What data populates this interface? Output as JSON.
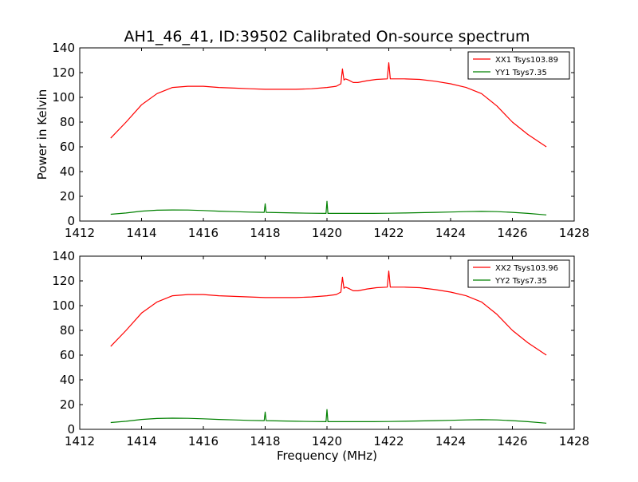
{
  "title": "AH1_46_41, ID:39502 Calibrated On-source spectrum",
  "colors": {
    "xx": "#ff0000",
    "yy": "#008000"
  },
  "chart_data": [
    {
      "type": "line",
      "ylabel": "Power in Kelvin",
      "xlabel": "",
      "xlim": [
        1412,
        1428
      ],
      "ylim": [
        0,
        140
      ],
      "xticks": [
        "1412",
        "1414",
        "1416",
        "1418",
        "1420",
        "1422",
        "1424",
        "1426",
        "1428"
      ],
      "yticks": [
        "0",
        "20",
        "40",
        "60",
        "80",
        "100",
        "120",
        "140"
      ],
      "legend": "top-right",
      "series": [
        {
          "name": "XX1 Tsys103.89",
          "color": "#ff0000",
          "x": [
            1413.0,
            1413.5,
            1414.0,
            1414.5,
            1415.0,
            1415.5,
            1416.0,
            1416.5,
            1417.0,
            1417.5,
            1418.0,
            1418.5,
            1419.0,
            1419.5,
            1420.0,
            1420.3,
            1420.45,
            1420.5,
            1420.55,
            1420.6,
            1420.7,
            1420.85,
            1421.0,
            1421.3,
            1421.6,
            1421.95,
            1422.0,
            1422.05,
            1422.5,
            1423.0,
            1423.5,
            1424.0,
            1424.5,
            1425.0,
            1425.5,
            1426.0,
            1426.5,
            1427.1
          ],
          "y": [
            67,
            80,
            94,
            103,
            108,
            109,
            109,
            108,
            107.5,
            107,
            106.5,
            106.5,
            106.5,
            107,
            108,
            109,
            111,
            123,
            114,
            115,
            114,
            112,
            112,
            113.5,
            114.5,
            115,
            128,
            115,
            115,
            114.5,
            113,
            111,
            108,
            103,
            93,
            80,
            70,
            60
          ]
        },
        {
          "name": "YY1 Tsys7.35",
          "color": "#008000",
          "x": [
            1413.0,
            1413.5,
            1414.0,
            1414.5,
            1415.0,
            1415.5,
            1416.0,
            1416.5,
            1417.0,
            1417.5,
            1417.97,
            1418.0,
            1418.03,
            1418.5,
            1419.0,
            1419.5,
            1419.97,
            1420.0,
            1420.03,
            1420.5,
            1421.0,
            1421.5,
            1422.0,
            1422.5,
            1423.0,
            1423.5,
            1424.0,
            1424.5,
            1425.0,
            1425.5,
            1426.0,
            1426.5,
            1427.1
          ],
          "y": [
            5.5,
            6.5,
            8,
            8.8,
            9,
            8.9,
            8.5,
            8,
            7.6,
            7.2,
            7,
            14,
            7,
            6.8,
            6.5,
            6.3,
            6.2,
            16,
            6.2,
            6.2,
            6.2,
            6.2,
            6.3,
            6.5,
            6.8,
            7,
            7.3,
            7.6,
            7.8,
            7.6,
            7,
            6.2,
            5
          ]
        }
      ]
    },
    {
      "type": "line",
      "ylabel": "",
      "xlabel": "Frequency (MHz)",
      "xlim": [
        1412,
        1428
      ],
      "ylim": [
        0,
        140
      ],
      "xticks": [
        "1412",
        "1414",
        "1416",
        "1418",
        "1420",
        "1422",
        "1424",
        "1426",
        "1428"
      ],
      "yticks": [
        "0",
        "20",
        "40",
        "60",
        "80",
        "100",
        "120",
        "140"
      ],
      "legend": "top-right",
      "series": [
        {
          "name": "XX2 Tsys103.96",
          "color": "#ff0000",
          "x": [
            1413.0,
            1413.5,
            1414.0,
            1414.5,
            1415.0,
            1415.5,
            1416.0,
            1416.5,
            1417.0,
            1417.5,
            1418.0,
            1418.5,
            1419.0,
            1419.5,
            1420.0,
            1420.3,
            1420.45,
            1420.5,
            1420.55,
            1420.6,
            1420.7,
            1420.85,
            1421.0,
            1421.3,
            1421.6,
            1421.95,
            1422.0,
            1422.05,
            1422.5,
            1423.0,
            1423.5,
            1424.0,
            1424.5,
            1425.0,
            1425.5,
            1426.0,
            1426.5,
            1427.1
          ],
          "y": [
            67,
            80,
            94,
            103,
            108,
            109,
            109,
            108,
            107.5,
            107,
            106.5,
            106.5,
            106.5,
            107,
            108,
            109,
            111,
            123,
            114,
            115,
            114,
            112,
            112,
            113.5,
            114.5,
            115,
            128,
            115,
            115,
            114.5,
            113,
            111,
            108,
            103,
            93,
            80,
            70,
            60
          ]
        },
        {
          "name": "YY2 Tsys7.35",
          "color": "#008000",
          "x": [
            1413.0,
            1413.5,
            1414.0,
            1414.5,
            1415.0,
            1415.5,
            1416.0,
            1416.5,
            1417.0,
            1417.5,
            1417.97,
            1418.0,
            1418.03,
            1418.5,
            1419.0,
            1419.5,
            1419.97,
            1420.0,
            1420.03,
            1420.5,
            1421.0,
            1421.5,
            1422.0,
            1422.5,
            1423.0,
            1423.5,
            1424.0,
            1424.5,
            1425.0,
            1425.5,
            1426.0,
            1426.5,
            1427.1
          ],
          "y": [
            5.5,
            6.5,
            8,
            8.8,
            9,
            8.9,
            8.5,
            8,
            7.6,
            7.2,
            7,
            14,
            7,
            6.8,
            6.5,
            6.3,
            6.2,
            16,
            6.2,
            6.2,
            6.2,
            6.2,
            6.3,
            6.5,
            6.8,
            7,
            7.3,
            7.6,
            7.8,
            7.6,
            7,
            6.2,
            5
          ]
        }
      ]
    }
  ]
}
